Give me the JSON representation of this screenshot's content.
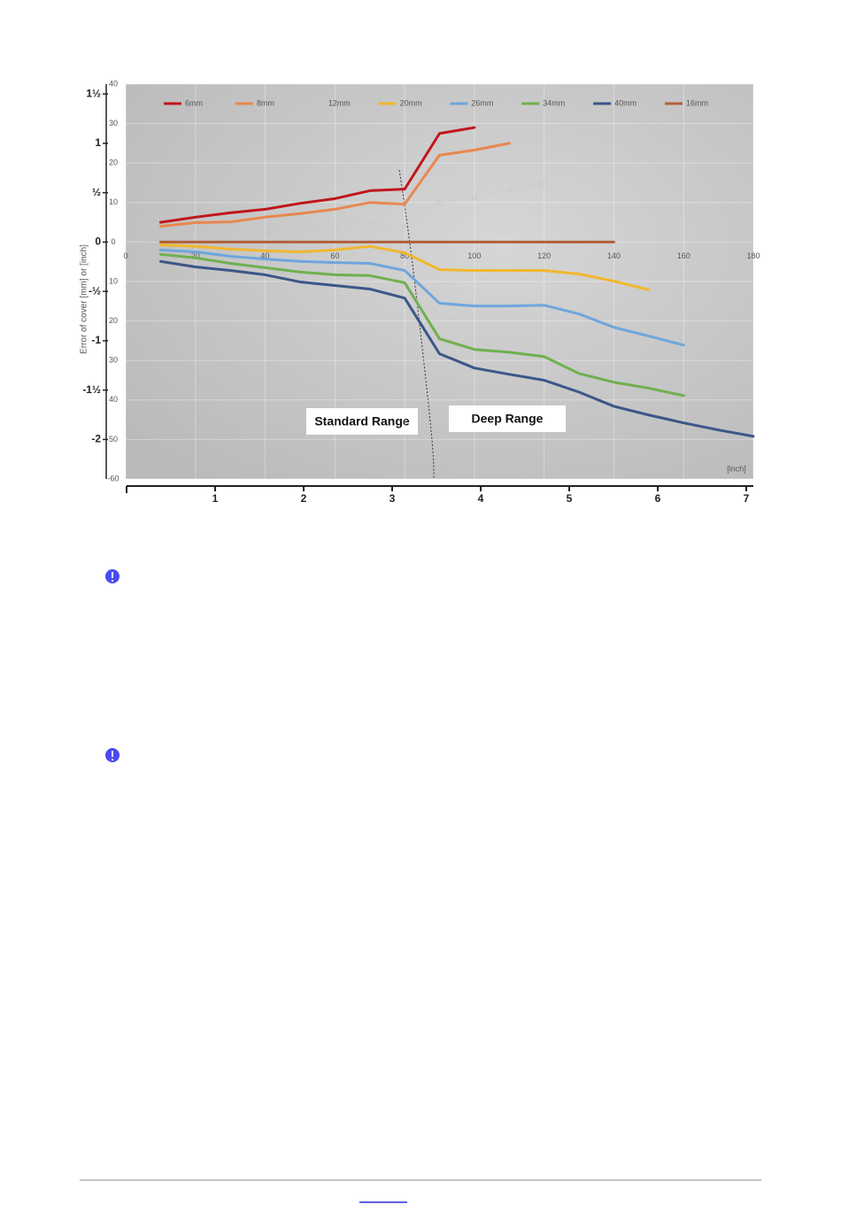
{
  "chart_data": {
    "type": "line",
    "ylabel": "Error of cover [mm] or [inch]",
    "x2_label": "[inch]",
    "annotations": [
      "Standard Range",
      "Deep Range"
    ],
    "grid": true,
    "legend": "top",
    "x": [
      10,
      20,
      30,
      40,
      50,
      60,
      70,
      80,
      90,
      100,
      110,
      120,
      130,
      140,
      150,
      160,
      170,
      180
    ],
    "xlim": [
      0,
      180
    ],
    "xticks": [
      0,
      20,
      40,
      60,
      80,
      100,
      120,
      140,
      160,
      180
    ],
    "x2lim": [
      0,
      7.08
    ],
    "x2ticks": [
      1,
      2,
      3,
      4,
      5,
      6,
      7
    ],
    "ylim": [
      -60,
      40
    ],
    "yticks": [
      40,
      30,
      20,
      10,
      0,
      {
        "value": -10,
        "label": "10"
      },
      {
        "value": -20,
        "label": "20"
      },
      {
        "value": -30,
        "label": "30"
      },
      {
        "value": -40,
        "label": "40"
      },
      {
        "value": -50,
        "label": "50"
      },
      -60
    ],
    "y2lim": [
      -2.4,
      1.6
    ],
    "y2ticks": [
      {
        "value": 1.5,
        "label": "1½"
      },
      1,
      {
        "value": 0.5,
        "label": "½"
      },
      0,
      {
        "value": -0.5,
        "label": "-½"
      },
      -1,
      {
        "value": -1.5,
        "label": "-1½"
      },
      -2
    ],
    "series": [
      {
        "name": "6mm",
        "color": "#c0161b",
        "values": [
          5,
          6.3,
          7.4,
          8.3,
          9.8,
          11,
          13,
          13.4,
          27.5,
          29,
          null,
          null,
          null,
          null,
          null,
          null,
          null,
          null
        ]
      },
      {
        "name": "8mm",
        "color": "#e8874f",
        "values": [
          4,
          4.9,
          5.1,
          6.3,
          7.2,
          8.3,
          10,
          9.6,
          22,
          23.3,
          25,
          null,
          null,
          null,
          null,
          null,
          null,
          null
        ]
      },
      {
        "name": "12mm",
        "color": "#c8c8c8",
        "line_style": "dotted",
        "marker": true,
        "values": [
          1.8,
          2,
          1.8,
          2.7,
          3.1,
          4.3,
          4.9,
          4,
          10,
          11.2,
          13.2,
          15,
          null,
          null,
          null,
          null,
          null,
          null
        ]
      },
      {
        "name": "20mm",
        "color": "#f2b72e",
        "values": [
          -0.7,
          -1.1,
          -1.8,
          -2.2,
          -2.5,
          -2,
          -1.1,
          -2.7,
          -7,
          -7.2,
          -7.2,
          -7.2,
          -8.1,
          -9.9,
          -12.1,
          null,
          null,
          null
        ]
      },
      {
        "name": "26mm",
        "color": "#6fa6dc",
        "values": [
          -2,
          -2.5,
          -3.6,
          -4.3,
          -4.9,
          -5.2,
          -5.4,
          -7.2,
          -15.5,
          -16.2,
          -16.2,
          -16,
          -18.2,
          -21.6,
          -23.8,
          -26.1,
          null,
          null
        ]
      },
      {
        "name": "34mm",
        "color": "#6fb04f",
        "values": [
          -3.1,
          -4,
          -5.4,
          -6.5,
          -7.6,
          -8.3,
          -8.5,
          -10.3,
          -24.5,
          -27.2,
          -27.9,
          -29,
          -33.3,
          -35.5,
          -37,
          -38.9,
          null,
          null
        ]
      },
      {
        "name": "40mm",
        "color": "#3c5688",
        "values": [
          -4.9,
          -6.3,
          -7.2,
          -8.3,
          -10.1,
          -11,
          -11.9,
          -14.2,
          -28.3,
          -31.9,
          -33.5,
          -35,
          -38,
          -41.6,
          -43.8,
          -45.8,
          -47.6,
          -49.2
        ]
      },
      {
        "name": "16mm",
        "color": "#b0603a",
        "values": [
          0,
          0,
          0,
          0,
          0,
          0,
          0,
          0,
          0,
          0,
          0,
          0,
          0,
          0,
          null,
          null,
          null,
          null
        ]
      }
    ]
  }
}
